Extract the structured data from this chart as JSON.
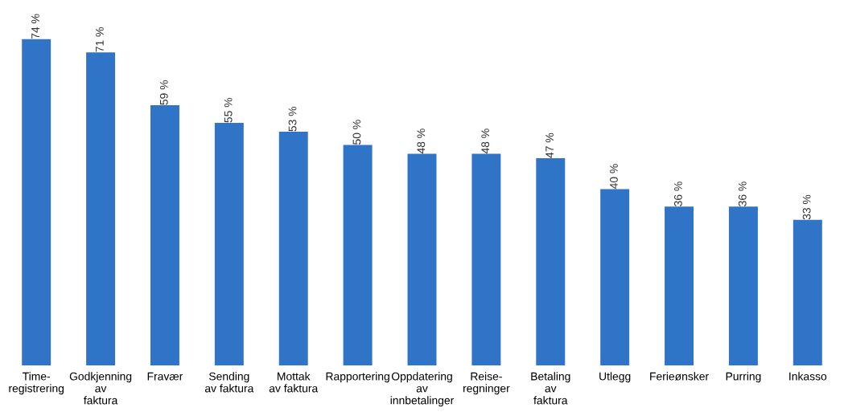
{
  "chart_data": {
    "type": "bar",
    "categories": [
      "Time-\nregistrering",
      "Godkjenning\nav\nfaktura",
      "Fravær",
      "Sending\nav faktura",
      "Mottak\nav faktura",
      "Rapportering",
      "Oppdatering\nav\ninnbetalinger",
      "Reise-\nregninger",
      "Betaling\nav\nfaktura",
      "Utlegg",
      "Ferieønsker",
      "Purring",
      "Inkasso"
    ],
    "values": [
      74,
      71,
      59,
      55,
      53,
      50,
      48,
      48,
      47,
      40,
      36,
      36,
      33
    ],
    "value_labels": [
      "74 %",
      "71 %",
      "59 %",
      "55 %",
      "53 %",
      "50 %",
      "48 %",
      "48 %",
      "47 %",
      "40 %",
      "36 %",
      "36 %",
      "33 %"
    ],
    "color": "#2f74c6",
    "grid": false,
    "legend": false
  }
}
